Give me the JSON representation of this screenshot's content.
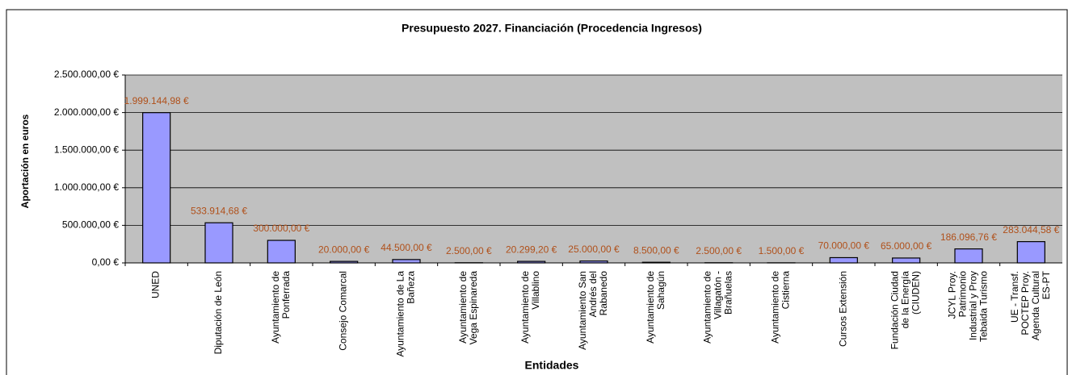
{
  "chart_data": {
    "type": "bar",
    "title": "Presupuesto 2027. Financiación (Procedencia Ingresos)",
    "x_label": "Entidades",
    "y_label": "Aportación en euros",
    "categories": [
      "UNED",
      "Diputación de León",
      "Ayuntamiento de Ponferrada",
      "Consejo Comarcal",
      "Ayuntamiento de La Bañeza",
      "Ayuntamiento de Vega Espinareda",
      "Ayuntamiento de Villablino",
      "Ayuntamiento San Andrés del Rabanedo",
      "Ayuntamiento de Sahagún",
      "Ayuntamiento de Villagatón - Brañuelas",
      "Ayuntamiento de Cistierna",
      "Cursos Extensión",
      "Fundación Ciudad de la Energía (CIUDEN)",
      "JCYL Proy. Patrimonio Industrial y Proy Tebaida Turismo",
      "UE - Transf. POCTEP Proy. Agenda Cultural ES-PT"
    ],
    "values": [
      1999144.98,
      533914.68,
      300000,
      20000,
      44500,
      2500,
      20299.2,
      25000,
      8500,
      2500,
      1500,
      70000,
      65000,
      186096.76,
      283044.58
    ],
    "value_labels": [
      "1.999.144,98 €",
      "533.914,68 €",
      "300.000,00 €",
      "20.000,00 €",
      "44.500,00 €",
      "2.500,00 €",
      "20.299,20 €",
      "25.000,00 €",
      "8.500,00 €",
      "2.500,00 €",
      "1.500,00 €",
      "70.000,00 €",
      "65.000,00 €",
      "186.096,76 €",
      "283.044,58 €"
    ],
    "color": "#9999ff",
    "label_color": "#b0501a",
    "ylim": [
      0,
      2500000
    ],
    "yticks": [
      {
        "value": 0,
        "label": "0,00 €"
      },
      {
        "value": 500000,
        "label": "500.000,00 €"
      },
      {
        "value": 1000000,
        "label": "1.000.000,00 €"
      },
      {
        "value": 1500000,
        "label": "1.500.000,00 €"
      },
      {
        "value": 2000000,
        "label": "2.000.000,00 €"
      },
      {
        "value": 2500000,
        "label": "2.500.000,00 €"
      }
    ],
    "grid": true
  }
}
